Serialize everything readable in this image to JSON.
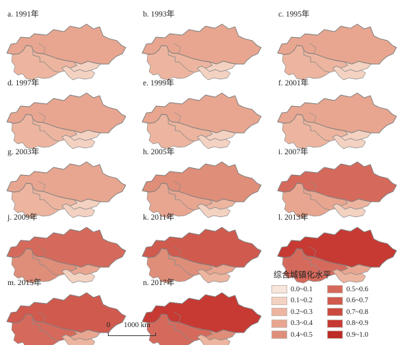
{
  "panels": [
    {
      "label": "a. 1991年",
      "fills": {
        "north": "#E8A690",
        "uz": "#EDB59F",
        "tm": "#EDB59F",
        "kg": "#F4D2C2",
        "tj": "#F4D2C2"
      }
    },
    {
      "label": "b. 1993年",
      "fills": {
        "north": "#E8A690",
        "uz": "#EDB59F",
        "tm": "#EDB59F",
        "kg": "#F4D2C2",
        "tj": "#F4D2C2"
      }
    },
    {
      "label": "c. 1995年",
      "fills": {
        "north": "#E8A690",
        "uz": "#EDB59F",
        "tm": "#EDB59F",
        "kg": "#F4D2C2",
        "tj": "#F4D2C2"
      }
    },
    {
      "label": "d. 1997年",
      "fills": {
        "north": "#E8A690",
        "uz": "#EDB59F",
        "tm": "#EDB59F",
        "kg": "#F4D2C2",
        "tj": "#F4D2C2"
      }
    },
    {
      "label": "e. 1999年",
      "fills": {
        "north": "#E8A690",
        "uz": "#EDB59F",
        "tm": "#EDB59F",
        "kg": "#F4D2C2",
        "tj": "#F4D2C2"
      }
    },
    {
      "label": "f. 2001年",
      "fills": {
        "north": "#E8A690",
        "uz": "#EDB59F",
        "tm": "#EDB59F",
        "kg": "#F4D2C2",
        "tj": "#F4D2C2"
      }
    },
    {
      "label": "g. 2003年",
      "fills": {
        "north": "#E8A690",
        "uz": "#EDB59F",
        "tm": "#EDB59F",
        "kg": "#F4D2C2",
        "tj": "#F4D2C2"
      }
    },
    {
      "label": "h. 2005年",
      "fills": {
        "north": "#DF8E79",
        "uz": "#E8A690",
        "tm": "#E8A690",
        "kg": "#EDB59F",
        "tj": "#F4D2C2"
      }
    },
    {
      "label": "i. 2007年",
      "fills": {
        "north": "#D56A5C",
        "uz": "#E8A690",
        "tm": "#E8A690",
        "kg": "#EDB59F",
        "tj": "#F4D2C2"
      }
    },
    {
      "label": "j. 2009年",
      "fills": {
        "north": "#D56A5C",
        "uz": "#DF8E79",
        "tm": "#DF8E79",
        "kg": "#E8A690",
        "tj": "#F4D2C2"
      }
    },
    {
      "label": "k. 2011年",
      "fills": {
        "north": "#D05A4E",
        "uz": "#DF8E79",
        "tm": "#DF8E79",
        "kg": "#E8A690",
        "tj": "#EDB59F"
      }
    },
    {
      "label": "l. 2013年",
      "fills": {
        "north": "#C63A33",
        "uz": "#D56A5C",
        "tm": "#D56A5C",
        "kg": "#E8A690",
        "tj": "#EDB59F"
      }
    },
    {
      "label": "m. 2015年",
      "fills": {
        "north": "#D05A4E",
        "uz": "#D56A5C",
        "tm": "#D56A5C",
        "kg": "#E8A690",
        "tj": "#EDB59F"
      }
    },
    {
      "label": "n. 2017年",
      "fills": {
        "north": "#C63A33",
        "uz": "#D56A5C",
        "tm": "#D56A5C",
        "kg": "#DF8E79",
        "tj": "#EDB59F"
      }
    }
  ],
  "legend": {
    "title": "综合城镇化水平",
    "items": [
      {
        "label": "0.0~0.1",
        "color": "#F8E6DC"
      },
      {
        "label": "0.1~0.2",
        "color": "#F4D2C2"
      },
      {
        "label": "0.2~0.3",
        "color": "#EDB59F"
      },
      {
        "label": "0.3~0.4",
        "color": "#E8A690"
      },
      {
        "label": "0.4~0.5",
        "color": "#DF8E79"
      },
      {
        "label": "0.5~0.6",
        "color": "#D56A5C"
      },
      {
        "label": "0.6~0.7",
        "color": "#D05A4E"
      },
      {
        "label": "0.7~0.8",
        "color": "#CA4A40"
      },
      {
        "label": "0.8~0.9",
        "color": "#C63A33"
      },
      {
        "label": "0.9~1.0",
        "color": "#BD2C26"
      }
    ]
  },
  "scalebar": {
    "zero": "0",
    "label": "1000 km"
  }
}
